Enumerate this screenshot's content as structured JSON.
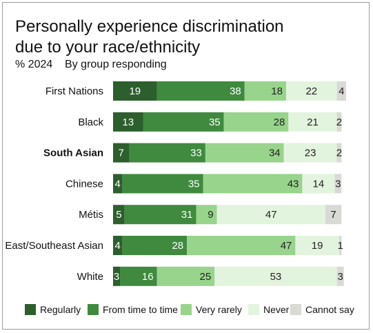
{
  "chart_data": {
    "type": "bar",
    "orientation": "horizontal",
    "stacked": true,
    "title": "Personally experience discrimination due to your race/ethnicity",
    "subtitle_measure": "% 2024",
    "subtitle_group": "By group responding",
    "categories": [
      "First Nations",
      "Black",
      "South Asian",
      "Chinese",
      "Métis",
      "East/Southeast Asian",
      "White"
    ],
    "highlight_category": "South Asian",
    "series": [
      {
        "name": "Regularly",
        "color": "#2d5e2d",
        "label_color": "#ffffff",
        "values": [
          19,
          13,
          7,
          4,
          5,
          4,
          3
        ]
      },
      {
        "name": "From time to time",
        "color": "#3f8a3f",
        "label_color": "#ffffff",
        "values": [
          38,
          35,
          33,
          35,
          31,
          28,
          16
        ]
      },
      {
        "name": "Very rarely",
        "color": "#98d48c",
        "label_color": "#222222",
        "values": [
          18,
          28,
          34,
          43,
          9,
          47,
          25
        ]
      },
      {
        "name": "Never",
        "color": "#e3f4de",
        "label_color": "#222222",
        "values": [
          22,
          21,
          23,
          14,
          47,
          19,
          53
        ]
      },
      {
        "name": "Cannot say",
        "color": "#d9d9d6",
        "label_color": "#222222",
        "values": [
          4,
          2,
          2,
          3,
          7,
          1,
          3
        ]
      }
    ],
    "xlim": [
      0,
      101
    ],
    "grid": false,
    "legend_position": "bottom"
  }
}
